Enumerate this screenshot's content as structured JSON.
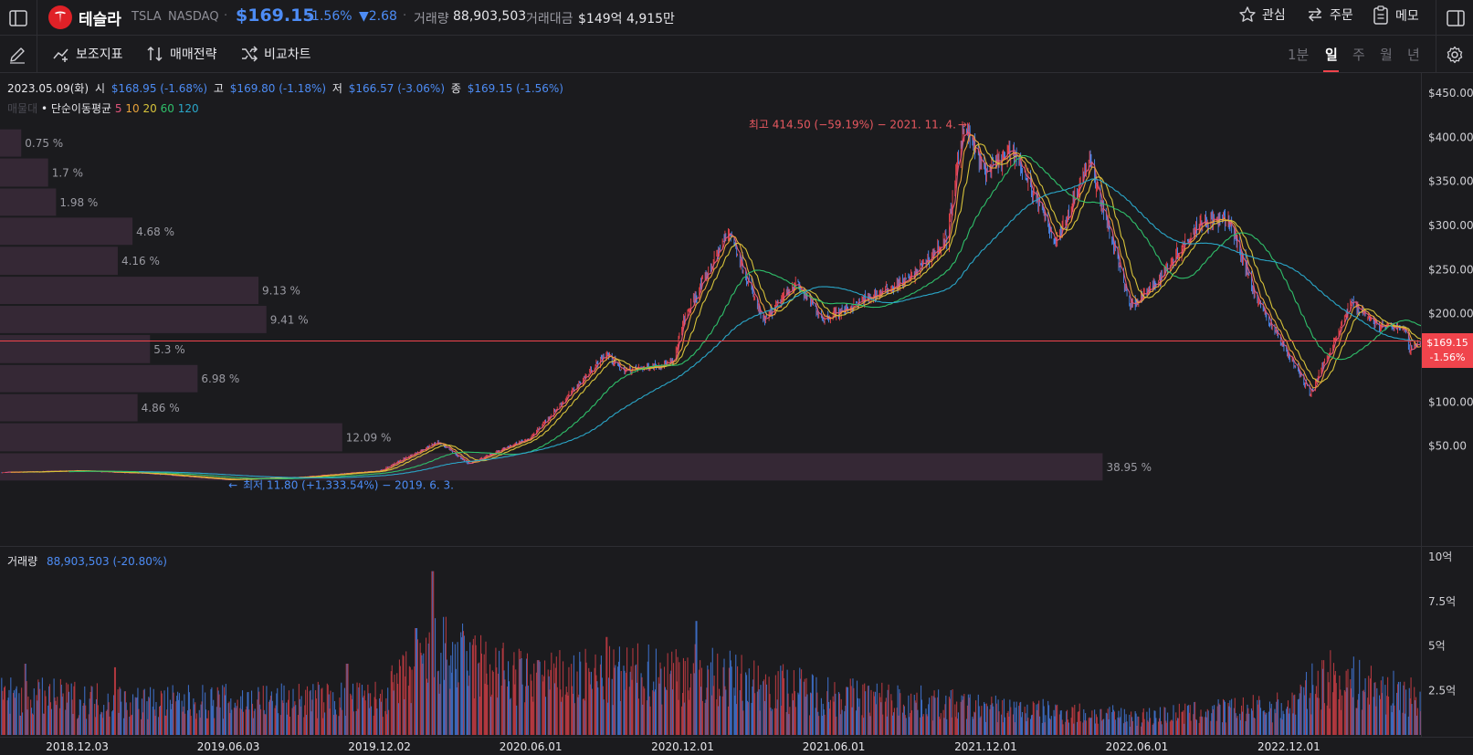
{
  "header": {
    "name": "테슬라",
    "ticker": "TSLA",
    "exchange": "NASDAQ",
    "price": "$169.15",
    "change_pct": "-1.56%",
    "change_abs": "▼2.68",
    "volume_label": "거래량",
    "volume_value": "88,903,503",
    "amount_label": "거래대금",
    "amount_value": "$149억 4,915만",
    "actions": {
      "watch": "관심",
      "order": "주문",
      "memo": "메모"
    }
  },
  "toolbar": {
    "indicators": "보조지표",
    "strategy": "매매전략",
    "compare": "비교차트",
    "periods": [
      "1분",
      "일",
      "주",
      "월",
      "년"
    ],
    "active_period": "일"
  },
  "legend": {
    "date": "2023.05.09(화)",
    "open_label": "시",
    "open": "$168.95 (-1.68%)",
    "high_label": "고",
    "high": "$169.80 (-1.18%)",
    "low_label": "저",
    "low": "$166.57 (-3.06%)",
    "close_label": "종",
    "close": "$169.15 (-1.56%)",
    "profile_label": "매물대",
    "ma_label": "• 단순이동평균",
    "ma_periods": [
      "5",
      "10",
      "20",
      "60",
      "120"
    ]
  },
  "annotations": {
    "high": "최고 414.50 (−59.19%) − 2021. 11. 4.",
    "low": "최저 11.80 (+1,333.54%) − 2019. 6. 3."
  },
  "current_price_tag": {
    "price": "$169.15",
    "pct": "-1.56%"
  },
  "volume_legend": {
    "label": "거래량",
    "value": "88,903,503 (-20.80%)"
  },
  "colors": {
    "up": "#f0444c",
    "down": "#4d8cf5",
    "ma5": "#e0557a",
    "ma10": "#e8a23a",
    "ma20": "#d6c23a",
    "ma60": "#2fbf6a",
    "ma120": "#2aa6c8",
    "profile_bar": "#3a2a3a"
  },
  "chart_data": [
    {
      "type": "line",
      "series_kind": "candlestick-with-moving-averages",
      "y_ticks": [
        "$50.00",
        "$100.00",
        "$150.00",
        "$200.00",
        "$250.00",
        "$300.00",
        "$350.00",
        "$400.00",
        "$450.00"
      ],
      "ylim": [
        0,
        460
      ],
      "x_ticks": [
        "2018.12.03",
        "2019.06.03",
        "2019.12.02",
        "2020.06.01",
        "2020.12.01",
        "2021.06.01",
        "2021.12.01",
        "2022.06.01",
        "2022.12.01"
      ],
      "xlim": [
        "2018-09-01",
        "2023-05-09"
      ],
      "price_path": [
        [
          "2018-09-01",
          20.0
        ],
        [
          "2018-12-03",
          22.0
        ],
        [
          "2019-03-01",
          19.0
        ],
        [
          "2019-06-03",
          12.0
        ],
        [
          "2019-09-01",
          15.0
        ],
        [
          "2019-12-02",
          22.0
        ],
        [
          "2020-02-10",
          55.0
        ],
        [
          "2020-03-18",
          30.0
        ],
        [
          "2020-06-01",
          60.0
        ],
        [
          "2020-08-31",
          155.0
        ],
        [
          "2020-09-20",
          135.0
        ],
        [
          "2020-11-20",
          145.0
        ],
        [
          "2020-12-01",
          190.0
        ],
        [
          "2021-01-26",
          295.0
        ],
        [
          "2021-03-08",
          190.0
        ],
        [
          "2021-04-15",
          235.0
        ],
        [
          "2021-05-19",
          195.0
        ],
        [
          "2021-06-15",
          205.0
        ],
        [
          "2021-09-01",
          240.0
        ],
        [
          "2021-10-15",
          285.0
        ],
        [
          "2021-11-04",
          414.5
        ],
        [
          "2021-11-30",
          360.0
        ],
        [
          "2022-01-04",
          385.0
        ],
        [
          "2022-02-24",
          280.0
        ],
        [
          "2022-04-04",
          375.0
        ],
        [
          "2022-05-24",
          210.0
        ],
        [
          "2022-06-20",
          230.0
        ],
        [
          "2022-08-16",
          305.0
        ],
        [
          "2022-09-20",
          305.0
        ],
        [
          "2022-10-24",
          215.0
        ],
        [
          "2022-12-27",
          110.0
        ],
        [
          "2023-02-15",
          214.0
        ],
        [
          "2023-03-20",
          185.0
        ],
        [
          "2023-04-18",
          185.0
        ],
        [
          "2023-04-25",
          160.0
        ],
        [
          "2023-05-09",
          169.15
        ]
      ],
      "current_price": 169.15,
      "volume_profile": [
        {
          "pct_label": "38.95 %",
          "value": 38.95,
          "range": [
            10,
            43
          ]
        },
        {
          "pct_label": "12.09 %",
          "value": 12.09,
          "range": [
            43,
            77
          ]
        },
        {
          "pct_label": "4.86 %",
          "value": 4.86,
          "range": [
            77,
            110
          ]
        },
        {
          "pct_label": "6.98 %",
          "value": 6.98,
          "range": [
            110,
            143
          ]
        },
        {
          "pct_label": "5.3 %",
          "value": 5.3,
          "range": [
            143,
            177
          ]
        },
        {
          "pct_label": "9.41 %",
          "value": 9.41,
          "range": [
            177,
            210
          ]
        },
        {
          "pct_label": "9.13 %",
          "value": 9.13,
          "range": [
            210,
            243
          ]
        },
        {
          "pct_label": "4.16 %",
          "value": 4.16,
          "range": [
            243,
            277
          ]
        },
        {
          "pct_label": "4.68 %",
          "value": 4.68,
          "range": [
            277,
            310
          ]
        },
        {
          "pct_label": "1.98 %",
          "value": 1.98,
          "range": [
            310,
            343
          ]
        },
        {
          "pct_label": "1.7 %",
          "value": 1.7,
          "range": [
            343,
            377
          ]
        },
        {
          "pct_label": "0.75 %",
          "value": 0.75,
          "range": [
            377,
            410
          ]
        }
      ]
    },
    {
      "type": "bar",
      "series_kind": "volume",
      "y_ticks": [
        "2.5억",
        "5억",
        "7.5억",
        "10억"
      ],
      "ylim": [
        0,
        1000000000
      ],
      "level_path": [
        [
          "2018-09-01",
          0.22
        ],
        [
          "2019-03-01",
          0.18
        ],
        [
          "2019-12-02",
          0.2
        ],
        [
          "2020-02-10",
          0.45
        ],
        [
          "2020-06-01",
          0.3
        ],
        [
          "2020-12-01",
          0.35
        ],
        [
          "2021-06-01",
          0.22
        ],
        [
          "2021-12-01",
          0.15
        ],
        [
          "2022-06-01",
          0.1
        ],
        [
          "2022-12-01",
          0.16
        ],
        [
          "2023-01-15",
          0.32
        ],
        [
          "2023-05-09",
          0.2
        ]
      ],
      "spikes": [
        [
          "2020-02-04",
          0.92
        ],
        [
          "2020-01-15",
          0.6
        ],
        [
          "2020-08-31",
          0.55
        ],
        [
          "2020-12-18",
          0.64
        ],
        [
          "2019-10-24",
          0.4
        ],
        [
          "2020-06-10",
          0.42
        ],
        [
          "2019-01-18",
          0.38
        ],
        [
          "2018-10-01",
          0.4
        ]
      ]
    }
  ]
}
